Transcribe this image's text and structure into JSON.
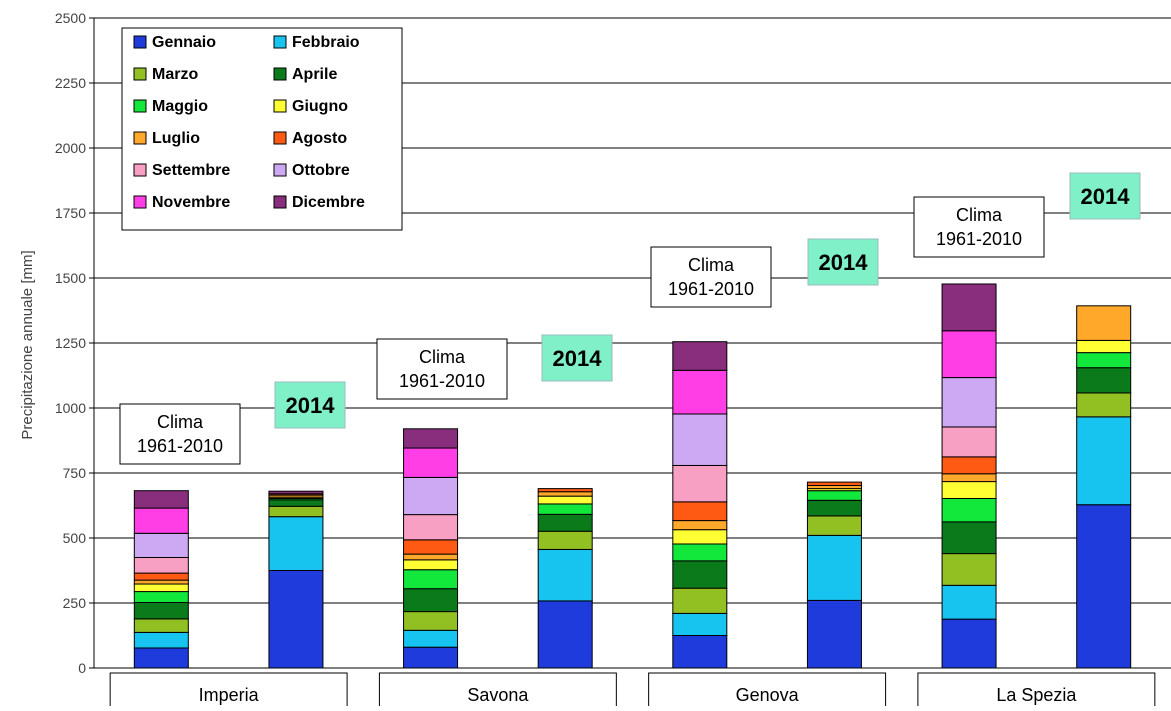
{
  "chart_data": {
    "type": "bar",
    "stacked": true,
    "ylabel": "Precipitazione annuale [mm]",
    "xlabel": "",
    "ylim": [
      0,
      2500
    ],
    "yticks": [
      0,
      250,
      500,
      750,
      1000,
      1250,
      1500,
      1750,
      2000,
      2250,
      2500
    ],
    "grid": true,
    "legend_position": "top-left",
    "series": [
      {
        "name": "Gennaio",
        "color": "#1f3bdc"
      },
      {
        "name": "Febbraio",
        "color": "#17c4f0"
      },
      {
        "name": "Marzo",
        "color": "#92c023"
      },
      {
        "name": "Aprile",
        "color": "#0a7a1b"
      },
      {
        "name": "Maggio",
        "color": "#12e83b"
      },
      {
        "name": "Giugno",
        "color": "#ffff33"
      },
      {
        "name": "Luglio",
        "color": "#ffa82a"
      },
      {
        "name": "Agosto",
        "color": "#ff5a14"
      },
      {
        "name": "Settembre",
        "color": "#f8a0c3"
      },
      {
        "name": "Ottobre",
        "color": "#cda8f3"
      },
      {
        "name": "Novembre",
        "color": "#ff3ee6"
      },
      {
        "name": "Dicembre",
        "color": "#892d7d"
      }
    ],
    "groups": [
      {
        "name": "Imperia",
        "bars": [
          {
            "label": "Clima\n1961-2010",
            "type": "clima",
            "values": [
              77,
              60,
              52,
              63,
              42,
              29,
              15,
              27,
              60,
              93,
              97,
              67
            ]
          },
          {
            "label": "2014",
            "type": "year",
            "values": [
              375,
              207,
              40,
              25,
              5,
              5,
              8,
              5,
              0,
              0,
              0,
              10
            ]
          }
        ]
      },
      {
        "name": "Savona",
        "bars": [
          {
            "label": "Clima\n1961-2010",
            "type": "clima",
            "values": [
              80,
              65,
              72,
              88,
              73,
              38,
              22,
              55,
              97,
              143,
              113,
              74
            ]
          },
          {
            "label": "2014",
            "type": "year",
            "values": [
              258,
              198,
              70,
              65,
              40,
              30,
              17,
              12,
              0,
              0,
              0,
              0
            ]
          }
        ]
      },
      {
        "name": "Genova",
        "bars": [
          {
            "label": "Clima\n1961-2010",
            "type": "clima",
            "values": [
              125,
              85,
              97,
              105,
              65,
              55,
              35,
              72,
              140,
              198,
              168,
              110
            ]
          },
          {
            "label": "2014",
            "type": "year",
            "values": [
              260,
              250,
              75,
              60,
              37,
              8,
              12,
              13,
              0,
              0,
              0,
              0
            ]
          }
        ]
      },
      {
        "name": "La Spezia",
        "bars": [
          {
            "label": "Clima\n1961-2010",
            "type": "clima",
            "values": [
              188,
              130,
              122,
              122,
              90,
              65,
              30,
              65,
              115,
              190,
              180,
              180
            ]
          },
          {
            "label": "2014",
            "type": "year",
            "values": [
              628,
              338,
              92,
              97,
              58,
              47,
              133,
              0,
              0,
              0,
              0,
              0
            ]
          }
        ]
      }
    ]
  }
}
